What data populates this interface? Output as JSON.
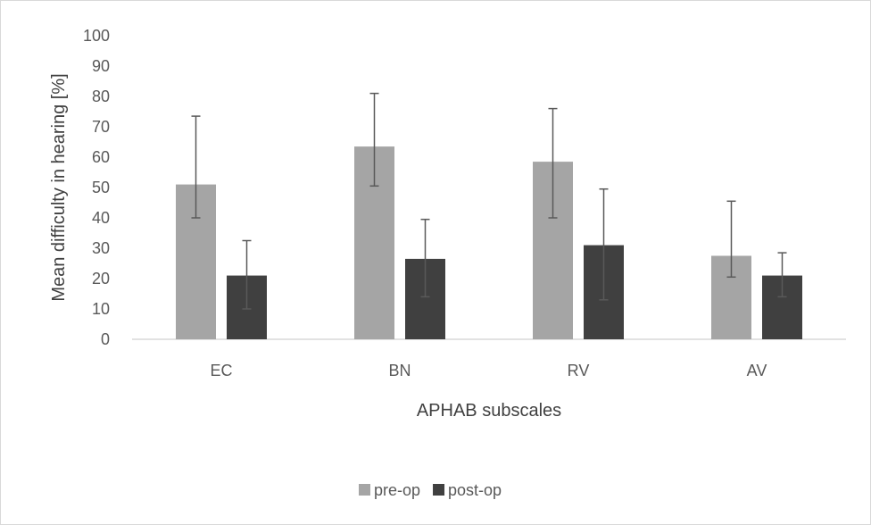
{
  "chart_data": {
    "type": "bar",
    "title": "",
    "xlabel": "APHAB subscales",
    "ylabel": "Mean difficulty in hearing [%]",
    "ylim": [
      0,
      100
    ],
    "yticks": [
      0,
      10,
      20,
      30,
      40,
      50,
      60,
      70,
      80,
      90,
      100
    ],
    "categories": [
      "EC",
      "BN",
      "RV",
      "AV"
    ],
    "grid": false,
    "legend_position": "bottom",
    "series": [
      {
        "name": "pre-op",
        "color": "#a5a5a5",
        "values": [
          51,
          63.5,
          58.5,
          27.5
        ],
        "error_low": [
          40,
          50.5,
          40,
          20.5
        ],
        "error_high": [
          73.5,
          81,
          76,
          45.5
        ]
      },
      {
        "name": "post-op",
        "color": "#404040",
        "values": [
          21,
          26.5,
          31,
          21
        ],
        "error_low": [
          10,
          14,
          13,
          14
        ],
        "error_high": [
          32.5,
          39.5,
          49.5,
          28.5
        ]
      }
    ]
  }
}
